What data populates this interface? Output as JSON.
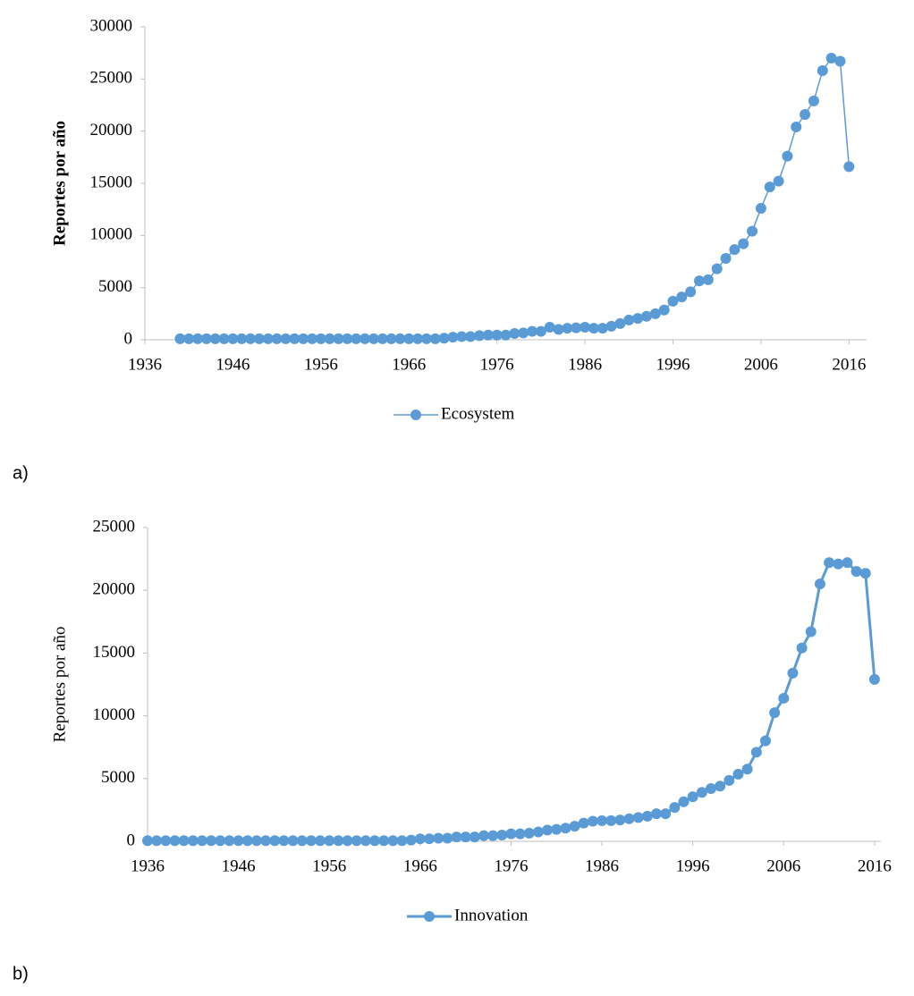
{
  "chart_data": [
    {
      "type": "line",
      "panel_label": "a)",
      "y_label": "Reportes por año",
      "xlim": [
        1936,
        2018
      ],
      "xticks": [
        1936,
        1946,
        1956,
        1966,
        1976,
        1986,
        1996,
        2006,
        2016
      ],
      "ylim": [
        0,
        30000
      ],
      "yticks": [
        0,
        5000,
        10000,
        15000,
        20000,
        25000,
        30000
      ],
      "x": [
        1940,
        1941,
        1942,
        1943,
        1944,
        1945,
        1946,
        1947,
        1948,
        1949,
        1950,
        1951,
        1952,
        1953,
        1954,
        1955,
        1956,
        1957,
        1958,
        1959,
        1960,
        1961,
        1962,
        1963,
        1964,
        1965,
        1966,
        1967,
        1968,
        1969,
        1970,
        1971,
        1972,
        1973,
        1974,
        1975,
        1976,
        1977,
        1978,
        1979,
        1980,
        1981,
        1982,
        1983,
        1984,
        1985,
        1986,
        1987,
        1988,
        1989,
        1990,
        1991,
        1992,
        1993,
        1994,
        1995,
        1996,
        1997,
        1998,
        1999,
        2000,
        2001,
        2002,
        2003,
        2004,
        2005,
        2006,
        2007,
        2008,
        2009,
        2010,
        2011,
        2012,
        2013,
        2014,
        2015,
        2016
      ],
      "series": [
        {
          "name": "Ecosystem",
          "color": "#5b9bd5",
          "values": [
            100,
            100,
            100,
            100,
            100,
            100,
            100,
            100,
            100,
            100,
            100,
            100,
            100,
            100,
            100,
            100,
            100,
            100,
            100,
            100,
            100,
            100,
            100,
            100,
            100,
            100,
            100,
            100,
            100,
            100,
            150,
            250,
            300,
            300,
            400,
            450,
            450,
            450,
            600,
            650,
            800,
            800,
            1200,
            1000,
            1100,
            1150,
            1200,
            1100,
            1100,
            1300,
            1550,
            1900,
            2050,
            2250,
            2500,
            2850,
            3700,
            4100,
            4600,
            5650,
            5750,
            6800,
            7800,
            8650,
            9200,
            10400,
            12600,
            14650,
            15200,
            17600,
            20400,
            21600,
            22900,
            25800,
            27000,
            26700,
            16600
          ]
        }
      ]
    },
    {
      "type": "line",
      "panel_label": "b)",
      "y_label": "Reportes por año",
      "xlim": [
        1936,
        2016.7
      ],
      "xticks": [
        1936,
        1946,
        1956,
        1966,
        1976,
        1986,
        1996,
        2006,
        2016
      ],
      "ylim": [
        0,
        25000
      ],
      "yticks": [
        0,
        5000,
        10000,
        15000,
        20000,
        25000
      ],
      "x": [
        1936,
        1937,
        1938,
        1939,
        1940,
        1941,
        1942,
        1943,
        1944,
        1945,
        1946,
        1947,
        1948,
        1949,
        1950,
        1951,
        1952,
        1953,
        1954,
        1955,
        1956,
        1957,
        1958,
        1959,
        1960,
        1961,
        1962,
        1963,
        1964,
        1965,
        1966,
        1967,
        1968,
        1969,
        1970,
        1971,
        1972,
        1973,
        1974,
        1975,
        1976,
        1977,
        1978,
        1979,
        1980,
        1981,
        1982,
        1983,
        1984,
        1985,
        1986,
        1987,
        1988,
        1989,
        1990,
        1991,
        1992,
        1993,
        1994,
        1995,
        1996,
        1997,
        1998,
        1999,
        2000,
        2001,
        2002,
        2003,
        2004,
        2005,
        2006,
        2007,
        2008,
        2009,
        2010,
        2011,
        2012,
        2013,
        2014,
        2015,
        2016
      ],
      "series": [
        {
          "name": "Innovation",
          "color": "#5b9bd5",
          "values": [
            50,
            50,
            50,
            50,
            50,
            50,
            50,
            50,
            50,
            50,
            50,
            50,
            50,
            50,
            50,
            50,
            50,
            50,
            50,
            50,
            50,
            50,
            50,
            50,
            50,
            50,
            50,
            50,
            50,
            100,
            200,
            200,
            250,
            250,
            350,
            350,
            350,
            450,
            450,
            500,
            600,
            600,
            650,
            750,
            900,
            950,
            1050,
            1200,
            1450,
            1600,
            1650,
            1650,
            1700,
            1800,
            1900,
            2000,
            2200,
            2200,
            2700,
            3150,
            3550,
            3900,
            4200,
            4400,
            4850,
            5350,
            5750,
            7100,
            8000,
            10250,
            11400,
            13400,
            15400,
            16700,
            20500,
            22200,
            22100,
            22200,
            21500,
            21350,
            12900
          ]
        }
      ]
    }
  ]
}
